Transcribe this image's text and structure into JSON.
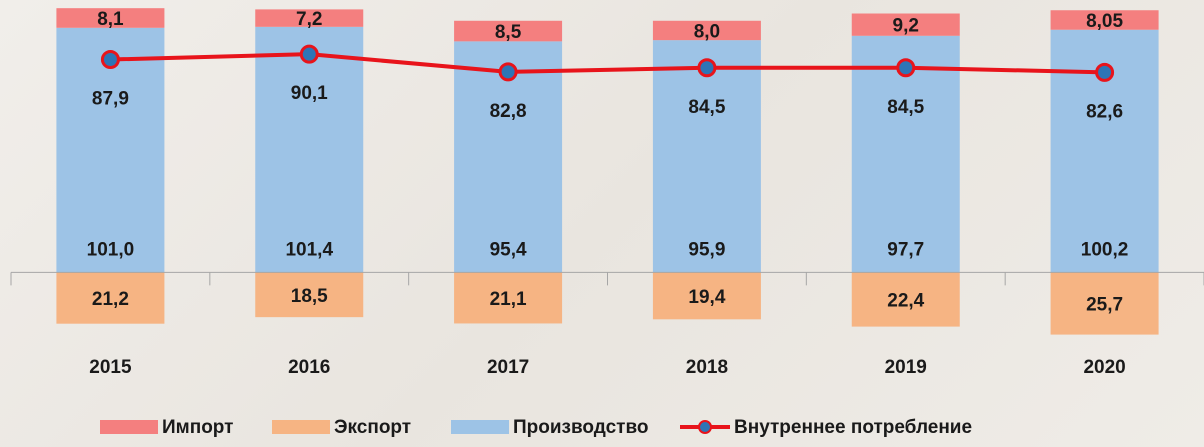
{
  "chart_data": {
    "type": "bar",
    "categories": [
      "2015",
      "2016",
      "2017",
      "2018",
      "2019",
      "2020"
    ],
    "series": [
      {
        "name": "Импорт",
        "type": "bar",
        "color": "#f47f7f",
        "values": [
          8.1,
          7.2,
          8.5,
          8.0,
          9.2,
          8.05
        ],
        "value_labels": [
          "8,1",
          "7,2",
          "8,5",
          "8,0",
          "9,2",
          "8,05"
        ]
      },
      {
        "name": "Экспорт",
        "type": "bar",
        "color": "#f6b483",
        "values": [
          -21.2,
          -18.5,
          -21.1,
          -19.4,
          -22.4,
          -25.7
        ],
        "value_labels": [
          "21,2",
          "18,5",
          "21,1",
          "19,4",
          "22,4",
          "25,7"
        ]
      },
      {
        "name": "Производство",
        "type": "bar",
        "color": "#9dc3e6",
        "values": [
          101.0,
          101.4,
          95.4,
          95.9,
          97.7,
          100.2
        ],
        "value_labels": [
          "101,0",
          "101,4",
          "95,4",
          "95,9",
          "97,7",
          "100,2"
        ]
      },
      {
        "name": "Внутреннее потребление",
        "type": "line",
        "color": "#e8141b",
        "marker_color": "#2e75b6",
        "values": [
          87.9,
          90.1,
          82.8,
          84.5,
          84.5,
          82.6
        ],
        "value_labels": [
          "87,9",
          "90,1",
          "82,8",
          "84,5",
          "84,5",
          "82,6"
        ]
      }
    ],
    "ylim": [
      -30,
      110
    ]
  }
}
